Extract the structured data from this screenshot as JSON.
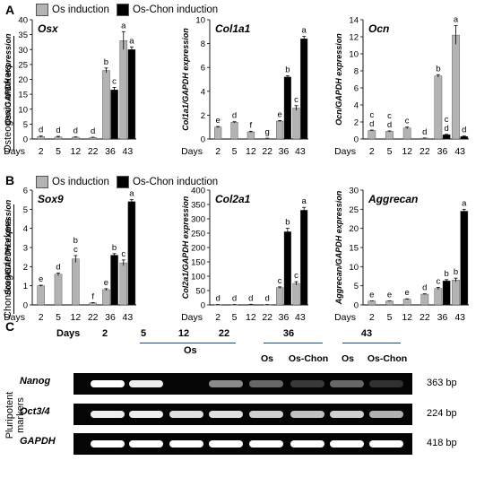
{
  "panels": {
    "a": "A",
    "b": "B",
    "c": "C"
  },
  "legend": {
    "os": "Os induction",
    "oschon": "Os-Chon induction"
  },
  "colors": {
    "os": "#b3b3b3",
    "oschon": "#000000"
  },
  "side_labels": {
    "osteogenic": "Osteogenic markers",
    "chondrogenic": "Chondrogenic markers",
    "pluripotent": "Pluripotent markers"
  },
  "chart_data": [
    {
      "type": "bar",
      "gene": "Osx",
      "ylabel": "Osx/GAPDH expression",
      "xlabel": "Days",
      "categories": [
        "2",
        "5",
        "12",
        "22",
        "36",
        "43"
      ],
      "ylim": [
        0,
        40
      ],
      "yticks": [
        0,
        5,
        10,
        15,
        20,
        25,
        30,
        35,
        40
      ],
      "series": [
        {
          "name": "Os induction",
          "values": [
            0.8,
            0.7,
            0.6,
            0.5,
            23,
            33
          ]
        },
        {
          "name": "Os-Chon induction",
          "values": [
            null,
            null,
            null,
            null,
            16.5,
            30
          ]
        }
      ],
      "errors": [
        [
          0.2,
          0.2,
          0.1,
          0.1,
          0.8,
          3
        ],
        [
          null,
          null,
          null,
          null,
          0.8,
          0.9
        ]
      ],
      "letters": [
        [
          "d",
          "d",
          "d",
          "d",
          "b",
          "a"
        ],
        [
          "",
          "",
          "",
          "",
          "c",
          "a"
        ]
      ]
    },
    {
      "type": "bar",
      "gene": "Col1a1",
      "ylabel": "Col1a1/GAPDH expression",
      "xlabel": "Days",
      "categories": [
        "2",
        "5",
        "12",
        "22",
        "36",
        "43"
      ],
      "ylim": [
        0,
        10
      ],
      "yticks": [
        0,
        2,
        4,
        6,
        8,
        10
      ],
      "series": [
        {
          "name": "Os induction",
          "values": [
            1,
            1.4,
            0.6,
            0.05,
            1.5,
            2.6
          ]
        },
        {
          "name": "Os-Chon induction",
          "values": [
            null,
            null,
            null,
            null,
            5.2,
            8.4
          ]
        }
      ],
      "errors": [
        [
          0.05,
          0.05,
          0.05,
          0.02,
          0.05,
          0.2
        ],
        [
          null,
          null,
          null,
          null,
          0.1,
          0.2
        ]
      ],
      "letters": [
        [
          "e",
          "d",
          "f",
          "g",
          "e",
          "c"
        ],
        [
          "",
          "",
          "",
          "",
          "b",
          "a"
        ]
      ]
    },
    {
      "type": "bar",
      "gene": "Ocn",
      "ylabel": "Ocn/GAPDH expression",
      "xlabel": "Days",
      "categories": [
        "2",
        "5",
        "12",
        "22",
        "36",
        "43"
      ],
      "ylim": [
        0,
        14
      ],
      "yticks": [
        0,
        2,
        4,
        6,
        8,
        10,
        12,
        14
      ],
      "series": [
        {
          "name": "Os induction",
          "values": [
            1,
            0.9,
            1.3,
            0.1,
            7.4,
            12.2
          ]
        },
        {
          "name": "Os-Chon induction",
          "values": [
            null,
            null,
            null,
            null,
            0.5,
            0.3
          ]
        }
      ],
      "errors": [
        [
          0.05,
          0.05,
          0.1,
          0.02,
          0.15,
          1.1
        ],
        [
          null,
          null,
          null,
          null,
          0.05,
          0.05
        ]
      ],
      "letters": [
        [
          "c\nd",
          "c\nd",
          "c",
          "d",
          "b",
          "a"
        ],
        [
          "",
          "",
          "",
          "",
          "c\nd",
          "d"
        ]
      ]
    },
    {
      "type": "bar",
      "gene": "Sox9",
      "ylabel": "Sox9/GAPDH expression",
      "xlabel": "Days",
      "categories": [
        "2",
        "5",
        "12",
        "22",
        "36",
        "43"
      ],
      "ylim": [
        0,
        6
      ],
      "yticks": [
        0,
        1,
        2,
        3,
        4,
        5,
        6
      ],
      "series": [
        {
          "name": "Os induction",
          "values": [
            1,
            1.6,
            2.4,
            0.1,
            0.8,
            2.2
          ]
        },
        {
          "name": "Os-Chon induction",
          "values": [
            null,
            null,
            null,
            null,
            2.6,
            5.4
          ]
        }
      ],
      "errors": [
        [
          0.03,
          0.07,
          0.18,
          0.02,
          0.05,
          0.15
        ],
        [
          null,
          null,
          null,
          null,
          0.08,
          0.1
        ]
      ],
      "letters": [
        [
          "e",
          "d",
          "b\nc",
          "f",
          "e",
          "c"
        ],
        [
          "",
          "",
          "",
          "",
          "b",
          "a"
        ]
      ]
    },
    {
      "type": "bar",
      "gene": "Col2a1",
      "ylabel": "Col2a1/GAPDH expression",
      "xlabel": "Days",
      "categories": [
        "2",
        "5",
        "12",
        "22",
        "36",
        "43"
      ],
      "ylim": [
        0,
        400
      ],
      "yticks": [
        0,
        50,
        100,
        150,
        200,
        250,
        300,
        350,
        400
      ],
      "series": [
        {
          "name": "Os induction",
          "values": [
            1,
            1,
            2,
            1,
            60,
            75
          ]
        },
        {
          "name": "Os-Chon induction",
          "values": [
            null,
            null,
            null,
            null,
            255,
            330
          ]
        }
      ],
      "errors": [
        [
          0.2,
          0.2,
          0.3,
          0.2,
          3,
          6
        ],
        [
          null,
          null,
          null,
          null,
          12,
          10
        ]
      ],
      "letters": [
        [
          "d",
          "d",
          "d",
          "d",
          "c",
          "c"
        ],
        [
          "",
          "",
          "",
          "",
          "b",
          "a"
        ]
      ]
    },
    {
      "type": "bar",
      "gene": "Aggrecan",
      "ylabel": "Aggrecan/GAPDH expression",
      "xlabel": "Days",
      "categories": [
        "2",
        "5",
        "12",
        "22",
        "36",
        "43"
      ],
      "ylim": [
        0,
        30
      ],
      "yticks": [
        0,
        5,
        10,
        15,
        20,
        25,
        30
      ],
      "series": [
        {
          "name": "Os induction",
          "values": [
            1,
            1,
            1.5,
            2.8,
            4.3,
            6.5
          ]
        },
        {
          "name": "Os-Chon induction",
          "values": [
            null,
            null,
            null,
            null,
            6.3,
            24.5
          ]
        }
      ],
      "errors": [
        [
          0.05,
          0.05,
          0.1,
          0.1,
          0.3,
          0.5
        ],
        [
          null,
          null,
          null,
          null,
          0.3,
          0.5
        ]
      ],
      "letters": [
        [
          "e",
          "e",
          "e",
          "d",
          "c",
          "b"
        ],
        [
          "",
          "",
          "",
          "",
          "b",
          "a"
        ]
      ]
    }
  ],
  "gel": {
    "days_label": "Days",
    "lane_headers": [
      "2",
      "5",
      "12",
      "22",
      "36",
      "43"
    ],
    "os_label": "Os",
    "sub_labels": [
      "Os",
      "Os-Chon",
      "Os",
      "Os-Chon"
    ],
    "genes": [
      "Nanog",
      "Oct3/4",
      "GAPDH"
    ],
    "sizes": [
      "363 bp",
      "224 bp",
      "418 bp"
    ],
    "band_levels": [
      [
        1,
        0.95,
        0,
        0.6,
        0.45,
        0.2,
        0.45,
        0.15
      ],
      [
        0.95,
        0.95,
        0.9,
        0.9,
        0.85,
        0.8,
        0.85,
        0.75
      ],
      [
        1,
        1,
        1,
        1,
        1,
        1,
        1,
        1
      ]
    ]
  }
}
